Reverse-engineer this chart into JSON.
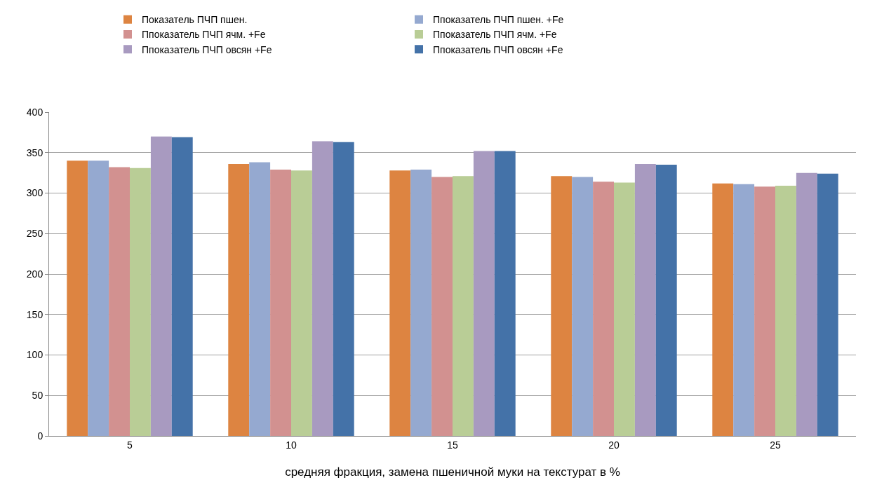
{
  "chart_data": {
    "type": "bar",
    "categories": [
      "5",
      "10",
      "15",
      "20",
      "25"
    ],
    "series": [
      {
        "name": "Показатель ПЧП пшен.",
        "color": "#dd8441",
        "values": [
          340,
          336,
          328,
          321,
          312
        ]
      },
      {
        "name": "Ппоказатель ПЧП пшен. +Fe",
        "color": "#95a9d0",
        "values": [
          340,
          338,
          329,
          320,
          311
        ]
      },
      {
        "name": "Ппоказатель ПЧП ячм. +Fe",
        "color": "#d29190",
        "values": [
          332,
          329,
          320,
          314,
          308
        ]
      },
      {
        "name": "Ппоказатель ПЧП ячм. +Fe",
        "color": "#b9cd96",
        "values": [
          331,
          328,
          321,
          313,
          309
        ]
      },
      {
        "name": "Ппоказатель ПЧП овсян +Fe",
        "color": "#a89ac0",
        "values": [
          370,
          364,
          352,
          336,
          325
        ]
      },
      {
        "name": "Ппоказатель ПЧП овсян +Fe",
        "color": "#4472a8",
        "values": [
          369,
          363,
          352,
          335,
          324
        ]
      }
    ],
    "xlabel": "средняя фракция, замена пшеничной муки на текстурат в %",
    "ylim": [
      0,
      400
    ],
    "yticks": [
      0,
      50,
      100,
      150,
      200,
      250,
      300,
      350,
      400
    ],
    "grid": "y",
    "legend": "top"
  }
}
